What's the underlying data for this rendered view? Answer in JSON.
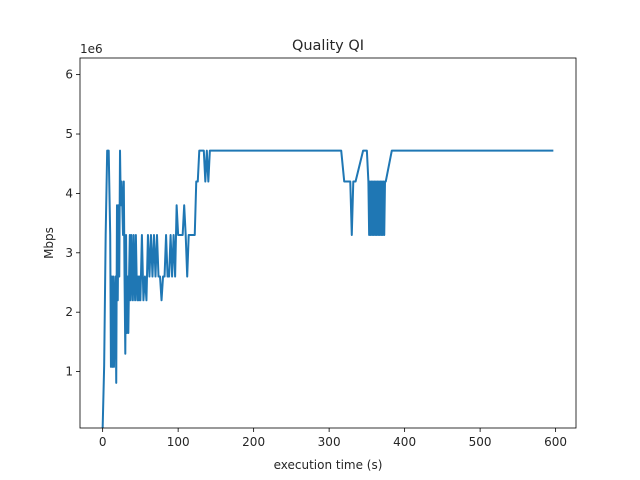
{
  "chart_data": {
    "type": "line",
    "title": "Quality QI",
    "xlabel": "execution time (s)",
    "ylabel": "Mbps",
    "y_offset_label": "1e6",
    "xlim": [
      -30,
      627
    ],
    "ylim": [
      50000,
      6280000
    ],
    "x_ticks": [
      0,
      100,
      200,
      300,
      400,
      500,
      600
    ],
    "y_ticks": [
      1000000,
      2000000,
      3000000,
      4000000,
      5000000,
      6000000
    ],
    "x_tick_labels": [
      "0",
      "100",
      "200",
      "300",
      "400",
      "500",
      "600"
    ],
    "y_tick_labels": [
      "1",
      "2",
      "3",
      "4",
      "5",
      "6"
    ],
    "grid": false,
    "line_color": "#1f77b4",
    "series": [
      {
        "x": [
          0,
          2,
          4,
          6,
          8,
          10,
          11,
          12,
          13,
          14,
          15,
          16,
          17,
          18,
          19,
          20,
          21,
          22,
          23,
          24,
          25,
          26,
          27,
          28,
          29,
          30,
          31,
          32,
          33,
          34,
          35,
          36,
          37,
          38,
          39,
          40,
          41,
          42,
          43,
          44,
          45,
          46,
          47,
          48,
          49,
          50,
          52,
          54,
          56,
          58,
          60,
          62,
          64,
          66,
          68,
          70,
          72,
          74,
          76,
          78,
          80,
          82,
          84,
          86,
          88,
          90,
          92,
          94,
          96,
          98,
          100,
          102,
          104,
          106,
          108,
          110,
          112,
          114,
          116,
          118,
          120,
          122,
          124,
          126,
          128,
          130,
          132,
          134,
          136,
          138,
          140,
          142,
          144,
          146,
          148,
          150,
          152,
          155,
          200,
          250,
          316,
          320,
          328,
          330,
          332,
          335,
          345,
          350,
          352,
          353,
          354,
          355,
          356,
          357,
          358,
          359,
          360,
          361,
          362,
          363,
          364,
          365,
          366,
          367,
          368,
          369,
          370,
          371,
          372,
          373,
          374,
          375,
          383,
          386,
          400,
          500,
          597
        ],
        "y": [
          50000,
          1100000,
          3300000,
          4720000,
          4720000,
          3300000,
          1080000,
          2600000,
          1080000,
          2600000,
          1080000,
          2200000,
          2600000,
          810000,
          3800000,
          2200000,
          3800000,
          2600000,
          4720000,
          3800000,
          4200000,
          3800000,
          3300000,
          4200000,
          2600000,
          1300000,
          3300000,
          1650000,
          2600000,
          1650000,
          2600000,
          3300000,
          2200000,
          3300000,
          2600000,
          2200000,
          3300000,
          2600000,
          2200000,
          3300000,
          2600000,
          2200000,
          2600000,
          2200000,
          2600000,
          2200000,
          3300000,
          2200000,
          2600000,
          2200000,
          3300000,
          2600000,
          3300000,
          2600000,
          3300000,
          2600000,
          3300000,
          2600000,
          2600000,
          2200000,
          2600000,
          2600000,
          3300000,
          2600000,
          2600000,
          3300000,
          2600000,
          3300000,
          2600000,
          3800000,
          3300000,
          3300000,
          3300000,
          3300000,
          3800000,
          3300000,
          2600000,
          3300000,
          3300000,
          3300000,
          3300000,
          3300000,
          4200000,
          4200000,
          4720000,
          4720000,
          4720000,
          4720000,
          4200000,
          4720000,
          4200000,
          4720000,
          4720000,
          4720000,
          4720000,
          4720000,
          4720000,
          4720000,
          4720000,
          4720000,
          4720000,
          4200000,
          4200000,
          3300000,
          4200000,
          4200000,
          4720000,
          4720000,
          4200000,
          3300000,
          4200000,
          3300000,
          4200000,
          3300000,
          4200000,
          3300000,
          4200000,
          3300000,
          4200000,
          3300000,
          4200000,
          3300000,
          4200000,
          3300000,
          4200000,
          3300000,
          4200000,
          3300000,
          4200000,
          3300000,
          4200000,
          4200000,
          4720000,
          4720000,
          4720000,
          4720000,
          4720000
        ]
      }
    ]
  }
}
